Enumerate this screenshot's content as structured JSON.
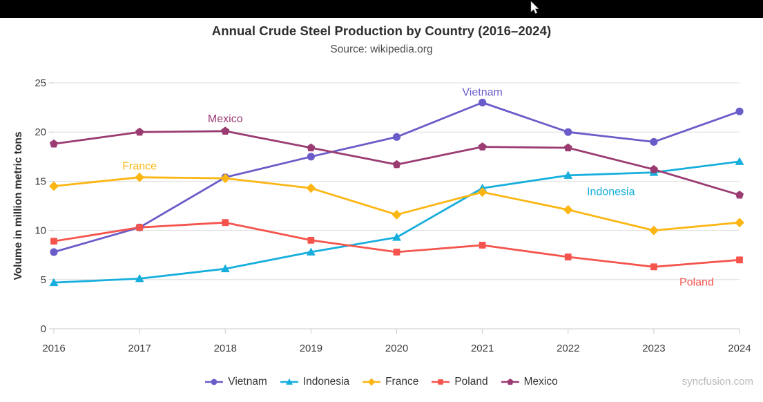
{
  "chart_data": {
    "type": "line",
    "title": "Annual Crude Steel Production by Country (2016–2024)",
    "subtitle": "Source: wikipedia.org",
    "xlabel": "",
    "ylabel": "Volume in million metric tons",
    "x": [
      2016,
      2017,
      2018,
      2019,
      2020,
      2021,
      2022,
      2023,
      2024
    ],
    "ylim": [
      0,
      25
    ],
    "ytick_interval": 5,
    "y_ticks": [
      0,
      5,
      10,
      15,
      20,
      25
    ],
    "grid": "horizontal-only",
    "legend_position": "bottom",
    "series": [
      {
        "name": "Vietnam",
        "color": "#695cc9",
        "marker": "circle",
        "values": [
          7.8,
          10.3,
          15.4,
          17.5,
          19.5,
          23.0,
          20.0,
          19.0,
          22.1
        ]
      },
      {
        "name": "Indonesia",
        "color": "#16aedc",
        "marker": "triangle",
        "values": [
          4.7,
          5.1,
          6.1,
          7.8,
          9.3,
          14.3,
          15.6,
          15.9,
          17.0
        ]
      },
      {
        "name": "France",
        "color": "#fcb614",
        "marker": "diamond",
        "values": [
          14.5,
          15.4,
          15.3,
          14.3,
          11.6,
          13.9,
          12.1,
          10.0,
          10.8
        ]
      },
      {
        "name": "Poland",
        "color": "#f4544c",
        "marker": "square",
        "values": [
          8.9,
          10.3,
          10.8,
          9.0,
          7.8,
          8.5,
          7.3,
          6.3,
          7.0
        ]
      },
      {
        "name": "Mexico",
        "color": "#9a3b72",
        "marker": "pentagon",
        "values": [
          18.8,
          20.0,
          20.1,
          18.4,
          16.7,
          18.5,
          18.4,
          16.2,
          13.6
        ]
      }
    ],
    "annotations": [
      {
        "label": "Vietnam",
        "x": 2021,
        "y": 23.7,
        "color": "#695cc9"
      },
      {
        "label": "Mexico",
        "x": 2018,
        "y": 21.0,
        "color": "#9a3b72"
      },
      {
        "label": "France",
        "x": 2017,
        "y": 16.2,
        "color": "#fcb614"
      },
      {
        "label": "Indonesia",
        "x": 2022.5,
        "y": 13.6,
        "color": "#16aedc"
      },
      {
        "label": "Poland",
        "x": 2023.5,
        "y": 4.4,
        "color": "#f4544c"
      }
    ]
  },
  "watermark": {
    "label": "syncfusion.com"
  }
}
